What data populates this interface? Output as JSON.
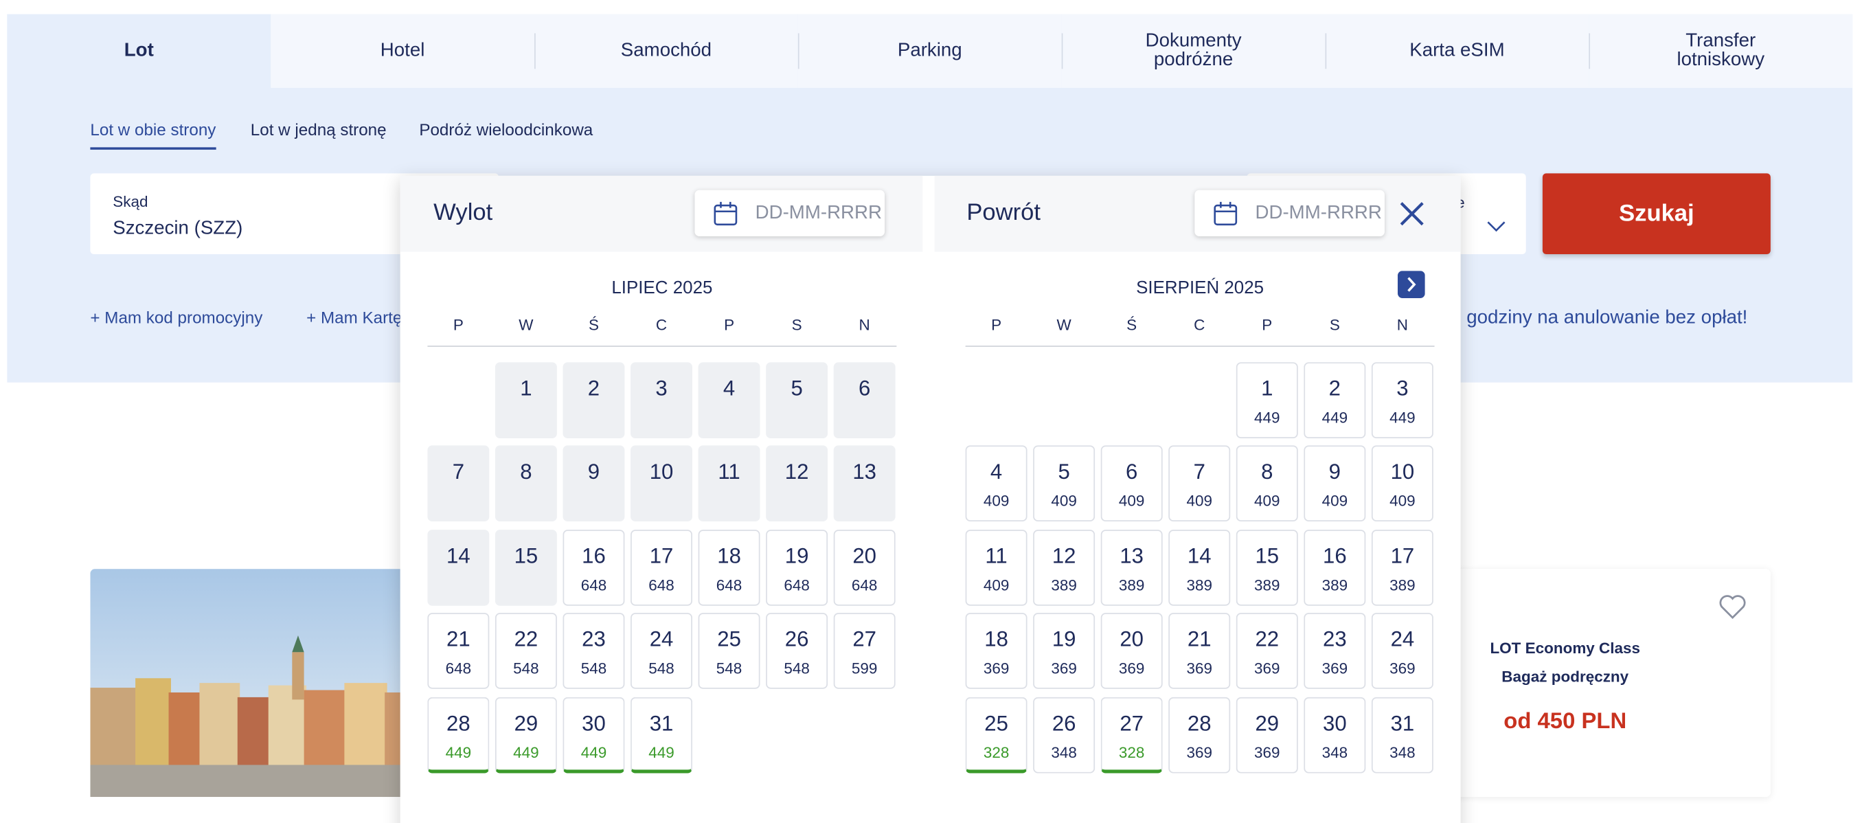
{
  "tabs": [
    "Lot",
    "Hotel",
    "Samochód",
    "Parking",
    "Dokumenty podróżne",
    "Karta eSIM",
    "Transfer lotniskowy"
  ],
  "trip_types": [
    "Lot w obie strony",
    "Lot w jedną stronę",
    "Podróż wieloodcinkowa"
  ],
  "from": {
    "label": "Skąd",
    "value": "Szczecin (SZZ)"
  },
  "passengers_fragment": "wie",
  "search_button": "Szukaj",
  "links": [
    "Mam kod promocyjny",
    "Mam Kartę"
  ],
  "notice": "godziny na anulowanie bez opłat!",
  "offer_card": {
    "class": "LOT Economy Class",
    "baggage": "Bagaż podręczny",
    "price": "od 450 PLN"
  },
  "datepicker": {
    "departure": {
      "label": "Wylot",
      "placeholder": "DD-MM-RRRR"
    },
    "return": {
      "label": "Powrót",
      "placeholder": "DD-MM-RRRR"
    },
    "weekdays": [
      "P",
      "W",
      "Ś",
      "C",
      "P",
      "S",
      "N"
    ],
    "months": [
      {
        "title": "LIPIEC 2025",
        "weeks": [
          [
            null,
            {
              "day": 1,
              "disabled": true
            },
            {
              "day": 2,
              "disabled": true
            },
            {
              "day": 3,
              "disabled": true
            },
            {
              "day": 4,
              "disabled": true
            },
            {
              "day": 5,
              "disabled": true
            },
            {
              "day": 6,
              "disabled": true
            }
          ],
          [
            {
              "day": 7,
              "disabled": true
            },
            {
              "day": 8,
              "disabled": true
            },
            {
              "day": 9,
              "disabled": true
            },
            {
              "day": 10,
              "disabled": true
            },
            {
              "day": 11,
              "disabled": true
            },
            {
              "day": 12,
              "disabled": true
            },
            {
              "day": 13,
              "disabled": true
            }
          ],
          [
            {
              "day": 14,
              "disabled": true
            },
            {
              "day": 15,
              "disabled": true
            },
            {
              "day": 16,
              "price": 648
            },
            {
              "day": 17,
              "price": 648
            },
            {
              "day": 18,
              "price": 648
            },
            {
              "day": 19,
              "price": 648
            },
            {
              "day": 20,
              "price": 648
            }
          ],
          [
            {
              "day": 21,
              "price": 648
            },
            {
              "day": 22,
              "price": 548
            },
            {
              "day": 23,
              "price": 548
            },
            {
              "day": 24,
              "price": 548
            },
            {
              "day": 25,
              "price": 548
            },
            {
              "day": 26,
              "price": 548
            },
            {
              "day": 27,
              "price": 599
            }
          ],
          [
            {
              "day": 28,
              "price": 449,
              "best": true
            },
            {
              "day": 29,
              "price": 449,
              "best": true
            },
            {
              "day": 30,
              "price": 449,
              "best": true
            },
            {
              "day": 31,
              "price": 449,
              "best": true
            }
          ]
        ]
      },
      {
        "title": "SIERPIEŃ 2025",
        "weeks": [
          [
            null,
            null,
            null,
            null,
            {
              "day": 1,
              "price": 449
            },
            {
              "day": 2,
              "price": 449
            },
            {
              "day": 3,
              "price": 449
            }
          ],
          [
            {
              "day": 4,
              "price": 409
            },
            {
              "day": 5,
              "price": 409
            },
            {
              "day": 6,
              "price": 409
            },
            {
              "day": 7,
              "price": 409
            },
            {
              "day": 8,
              "price": 409
            },
            {
              "day": 9,
              "price": 409
            },
            {
              "day": 10,
              "price": 409
            }
          ],
          [
            {
              "day": 11,
              "price": 409
            },
            {
              "day": 12,
              "price": 389
            },
            {
              "day": 13,
              "price": 389
            },
            {
              "day": 14,
              "price": 389
            },
            {
              "day": 15,
              "price": 389
            },
            {
              "day": 16,
              "price": 389
            },
            {
              "day": 17,
              "price": 389
            }
          ],
          [
            {
              "day": 18,
              "price": 369
            },
            {
              "day": 19,
              "price": 369
            },
            {
              "day": 20,
              "price": 369
            },
            {
              "day": 21,
              "price": 369
            },
            {
              "day": 22,
              "price": 369
            },
            {
              "day": 23,
              "price": 369
            },
            {
              "day": 24,
              "price": 369
            }
          ],
          [
            {
              "day": 25,
              "price": 328,
              "best": true
            },
            {
              "day": 26,
              "price": 348
            },
            {
              "day": 27,
              "price": 328,
              "best": true
            },
            {
              "day": 28,
              "price": 369
            },
            {
              "day": 29,
              "price": 369
            },
            {
              "day": 30,
              "price": 348
            },
            {
              "day": 31,
              "price": 348
            }
          ]
        ]
      }
    ]
  }
}
